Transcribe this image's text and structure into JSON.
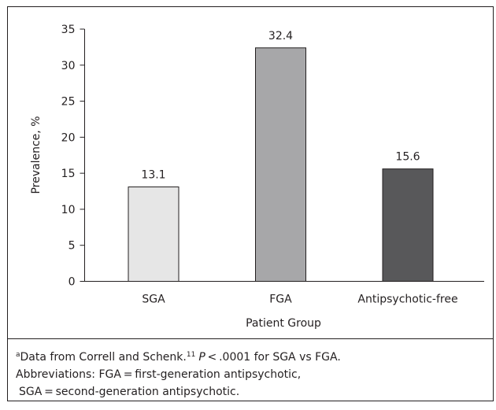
{
  "chart_data": {
    "type": "bar",
    "categories": [
      "SGA",
      "FGA",
      "Antipsychotic-free"
    ],
    "values": [
      13.1,
      32.4,
      15.6
    ],
    "colors": [
      "#e6e6e6",
      "#a7a7a9",
      "#58585a"
    ],
    "ylim": [
      0,
      35
    ],
    "yticks": [
      0,
      5,
      10,
      15,
      20,
      25,
      30,
      35
    ],
    "ylabel": "Prevalence, %",
    "xlabel": "Patient Group",
    "grid": false
  },
  "footnote": {
    "marker": "a",
    "text1": "Data from Correll and Schenk.",
    "ref": "11",
    "p": "P",
    "text2": " < .0001 for SGA vs FGA.",
    "lines": [
      "Abbreviations: FGA = first-generation antipsychotic,",
      "SGA = second-generation antipsychotic."
    ]
  }
}
